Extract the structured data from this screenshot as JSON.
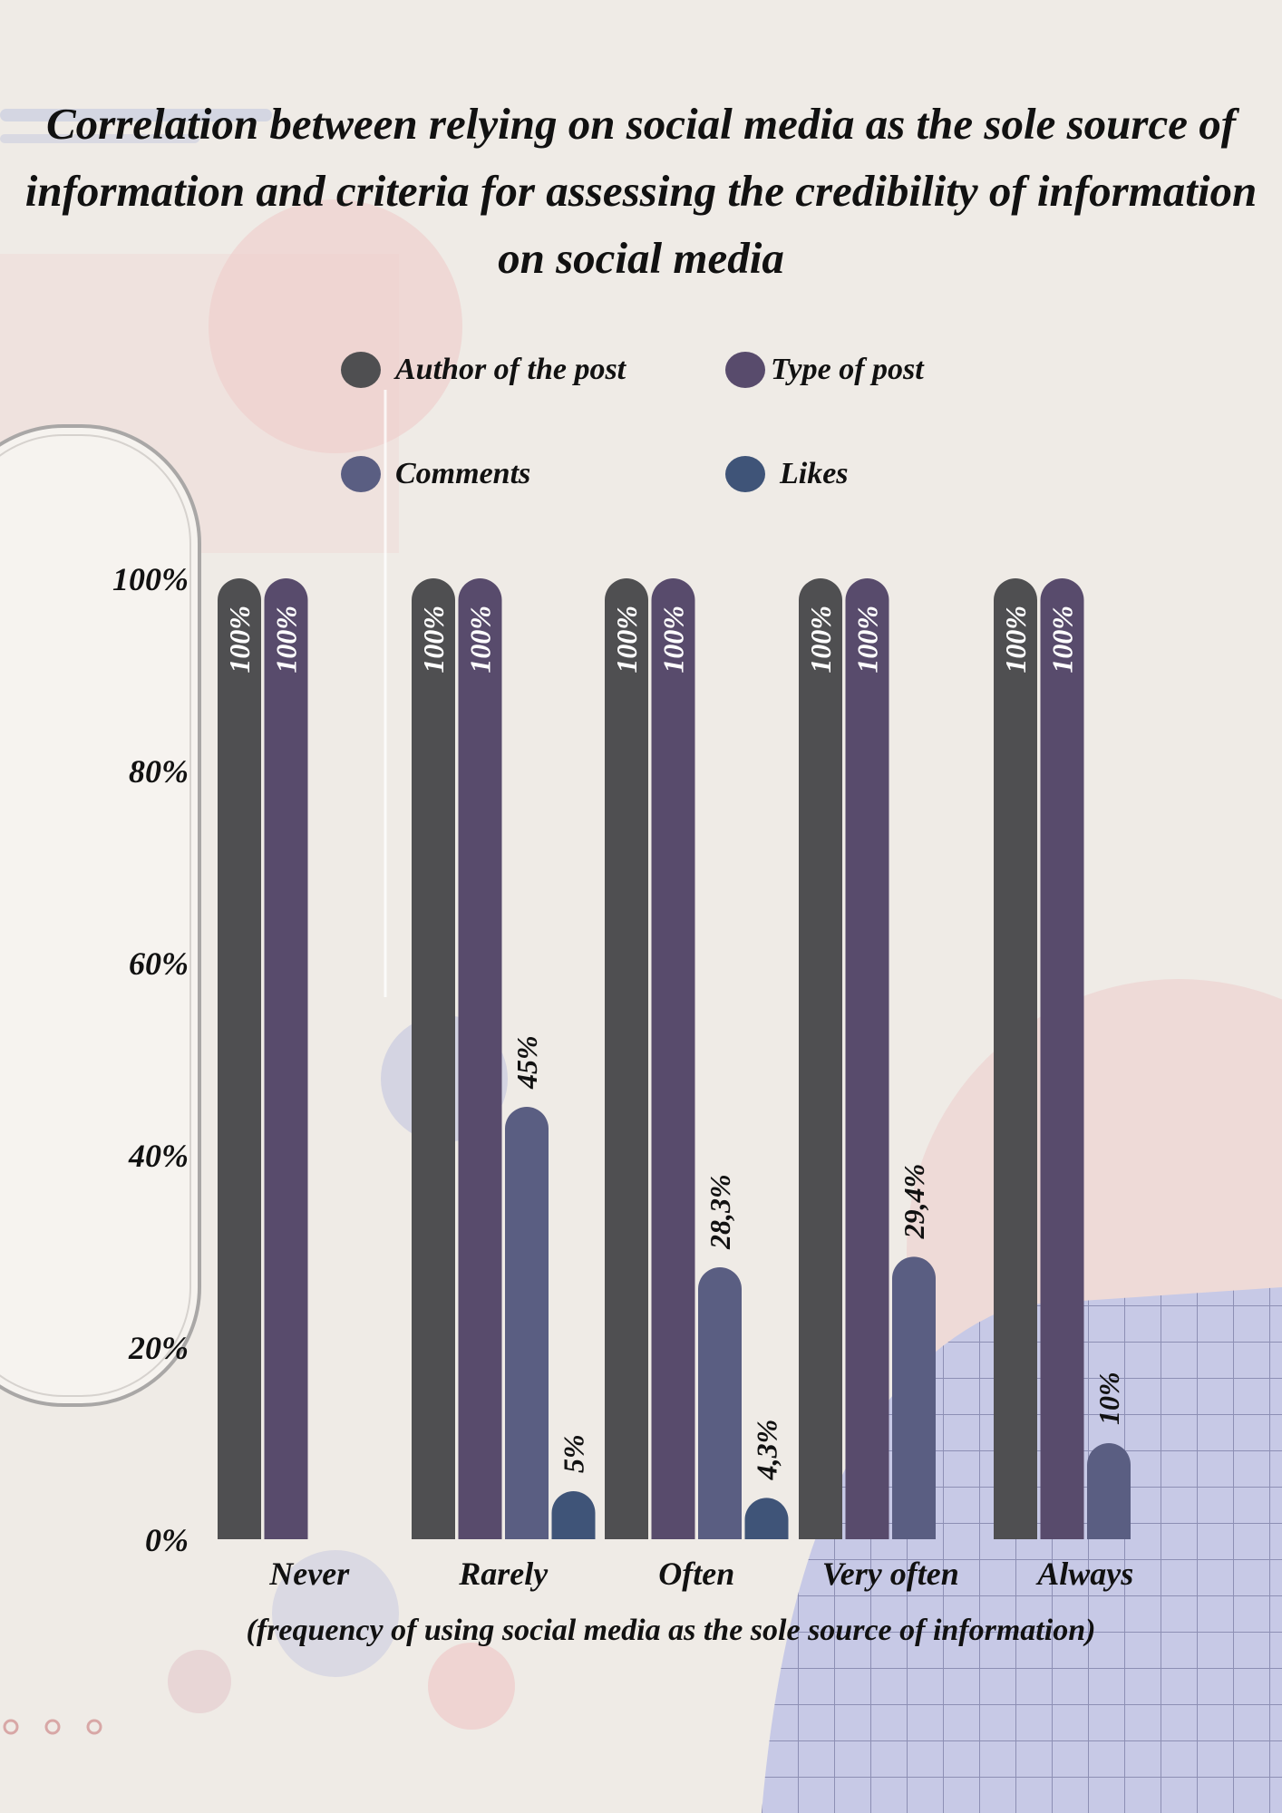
{
  "chart_data": {
    "type": "bar",
    "title": "Correlation between relying on social media as the sole source of information and criteria for assessing the credibility of information on social media",
    "xlabel": "(frequency of using social media as the sole source of information)",
    "ylabel": "",
    "categories": [
      "Never",
      "Rarely",
      "Often",
      "Very often",
      "Always"
    ],
    "ylim": [
      0,
      100
    ],
    "yticks": [
      0,
      20,
      40,
      60,
      80,
      100
    ],
    "ytick_labels": [
      "0%",
      "20%",
      "40%",
      "60%",
      "80%",
      "100%"
    ],
    "grid": false,
    "legend_position": "top-center",
    "series": [
      {
        "name": "Author of the post",
        "color": "#4f4f51",
        "values": [
          100,
          100,
          100,
          100,
          100
        ],
        "labels": [
          "100%",
          "100%",
          "100%",
          "100%",
          "100%"
        ]
      },
      {
        "name": "Type of post",
        "color": "#584b6c",
        "values": [
          100,
          100,
          100,
          100,
          100
        ],
        "labels": [
          "100%",
          "100%",
          "100%",
          "100%",
          "100%"
        ]
      },
      {
        "name": "Comments",
        "color": "#5a5e82",
        "values": [
          null,
          45,
          28.3,
          29.4,
          10
        ],
        "labels": [
          "",
          "45%",
          "28,3%",
          "29,4%",
          "10%"
        ]
      },
      {
        "name": "Likes",
        "color": "#3f5478",
        "values": [
          null,
          5,
          4.3,
          null,
          null
        ],
        "labels": [
          "",
          "5%",
          "4,3%",
          "",
          ""
        ]
      }
    ]
  }
}
